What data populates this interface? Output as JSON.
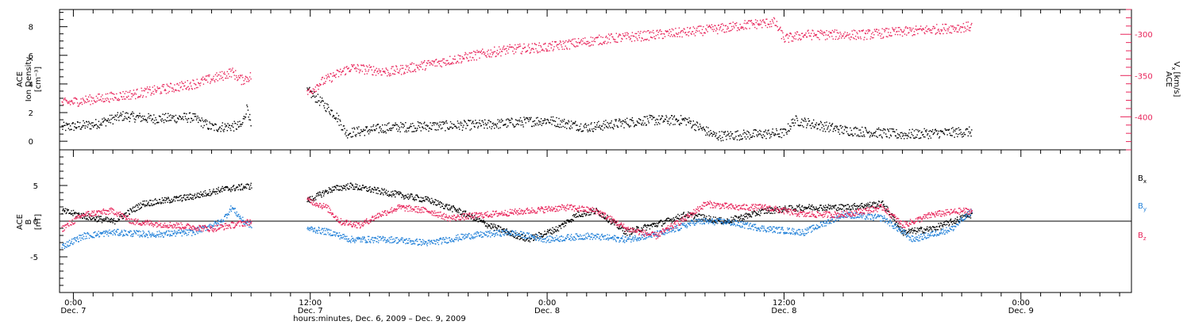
{
  "figure": {
    "footer_label": "hours:minutes, Dec.  6, 2009 – Dec.  9, 2009",
    "x_ticks": [
      {
        "time": "0:00",
        "date": "Dec. 7",
        "hours": 24
      },
      {
        "time": "12:00",
        "date": "Dec. 7",
        "hours": 36
      },
      {
        "time": "0:00",
        "date": "Dec. 8",
        "hours": 48
      },
      {
        "time": "12:00",
        "date": "Dec. 8",
        "hours": 60
      },
      {
        "time": "0:00",
        "date": "Dec. 9",
        "hours": 72
      }
    ],
    "x_range_hours": [
      23.3,
      77.6
    ],
    "colors": {
      "black": "#000000",
      "red": "#e8245a",
      "blue": "#1f7fd8"
    }
  },
  "chart_data": [
    {
      "type": "scatter",
      "panel": "top",
      "x_unit": "hours since Dec. 6, 2009 00:00",
      "left_axis": {
        "label_line1": "ACE",
        "label_line2": "Ion Density",
        "label_line3": "[cm⁻³]",
        "ylim": [
          -0.6,
          9.2
        ],
        "ticks": [
          0,
          2,
          4,
          6,
          8
        ]
      },
      "right_axis": {
        "label_line1": "ACE",
        "label_line2": "V",
        "label_sub": "x",
        "label_line3": "[km/s]",
        "ylim": [
          -440,
          -270
        ],
        "ticks": [
          -300,
          -350,
          -400
        ]
      },
      "series": [
        {
          "axis": "left",
          "color": "#000000",
          "gaps": [
            [
              33.0,
              35.8
            ]
          ],
          "anchors": [
            [
              23.4,
              1.0
            ],
            [
              25.0,
              1.2
            ],
            [
              26.5,
              1.8
            ],
            [
              28.0,
              1.6
            ],
            [
              30.0,
              1.7
            ],
            [
              31.0,
              1.0
            ],
            [
              32.5,
              1.1
            ],
            [
              32.8,
              2.5
            ],
            [
              33.0,
              0.8
            ],
            [
              35.9,
              3.5
            ],
            [
              36.5,
              2.8
            ],
            [
              37.3,
              1.8
            ],
            [
              37.8,
              0.6
            ],
            [
              40.0,
              1.0
            ],
            [
              45.0,
              1.2
            ],
            [
              48.0,
              1.5
            ],
            [
              50.0,
              1.0
            ],
            [
              53.0,
              1.5
            ],
            [
              55.0,
              1.5
            ],
            [
              56.5,
              0.4
            ],
            [
              60.0,
              0.6
            ],
            [
              60.5,
              1.5
            ],
            [
              63.0,
              0.8
            ],
            [
              66.0,
              0.5
            ],
            [
              69.5,
              0.7
            ]
          ]
        },
        {
          "axis": "right",
          "color": "#e8245a",
          "gaps": [
            [
              33.0,
              35.8
            ]
          ],
          "anchors": [
            [
              23.4,
              -383
            ],
            [
              27.0,
              -372
            ],
            [
              30.0,
              -360
            ],
            [
              31.5,
              -350
            ],
            [
              32.0,
              -345
            ],
            [
              32.5,
              -355
            ],
            [
              33.0,
              -350
            ],
            [
              35.9,
              -370
            ],
            [
              36.5,
              -358
            ],
            [
              38.0,
              -340
            ],
            [
              40.0,
              -345
            ],
            [
              45.0,
              -322
            ],
            [
              46.0,
              -318
            ],
            [
              48.0,
              -315
            ],
            [
              51.0,
              -305
            ],
            [
              55.0,
              -297
            ],
            [
              57.0,
              -292
            ],
            [
              58.0,
              -288
            ],
            [
              59.5,
              -285
            ],
            [
              60.0,
              -305
            ],
            [
              61.0,
              -300
            ],
            [
              64.0,
              -300
            ],
            [
              69.5,
              -290
            ]
          ]
        }
      ]
    },
    {
      "type": "scatter",
      "panel": "bottom",
      "x_unit": "hours since Dec. 6, 2009 00:00",
      "left_axis": {
        "label_line1": "ACE",
        "label_line2": "B",
        "label_line3": "[nT]",
        "ylim": [
          -10,
          10
        ],
        "ticks": [
          5,
          0,
          -5
        ]
      },
      "zero_line": true,
      "legend": {
        "placement": "right",
        "items": [
          {
            "text": "B",
            "sub": "x",
            "color": "#000000"
          },
          {
            "text": "B",
            "sub": "y",
            "color": "#1f7fd8"
          },
          {
            "text": "B",
            "sub": "z",
            "color": "#e8245a"
          }
        ]
      },
      "series": [
        {
          "name": "Bx",
          "color": "#000000",
          "gaps": [
            [
              33.0,
              35.8
            ]
          ],
          "anchors": [
            [
              23.4,
              1.5
            ],
            [
              24.5,
              0.8
            ],
            [
              26.0,
              0.0
            ],
            [
              27.5,
              2.5
            ],
            [
              30.0,
              3.5
            ],
            [
              31.5,
              4.5
            ],
            [
              33.0,
              5.0
            ],
            [
              35.9,
              3.0
            ],
            [
              37.0,
              4.5
            ],
            [
              38.0,
              5.0
            ],
            [
              40.0,
              4.0
            ],
            [
              42.0,
              3.0
            ],
            [
              43.5,
              1.5
            ],
            [
              45.0,
              -0.5
            ],
            [
              47.0,
              -2.5
            ],
            [
              48.5,
              -1.0
            ],
            [
              49.5,
              1.0
            ],
            [
              50.5,
              1.5
            ],
            [
              52.0,
              -1.5
            ],
            [
              54.0,
              0.0
            ],
            [
              55.0,
              1.0
            ],
            [
              57.0,
              0.0
            ],
            [
              59.0,
              1.5
            ],
            [
              61.0,
              2.0
            ],
            [
              63.0,
              2.0
            ],
            [
              65.0,
              2.5
            ],
            [
              66.0,
              -1.5
            ],
            [
              67.5,
              -1.0
            ],
            [
              69.5,
              1.0
            ]
          ]
        },
        {
          "name": "By",
          "color": "#1f7fd8",
          "gaps": [
            [
              33.0,
              35.8
            ]
          ],
          "anchors": [
            [
              23.4,
              -3.5
            ],
            [
              24.5,
              -2.0
            ],
            [
              26.0,
              -1.5
            ],
            [
              28.0,
              -1.8
            ],
            [
              30.0,
              -1.5
            ],
            [
              31.5,
              0.0
            ],
            [
              32.0,
              2.0
            ],
            [
              32.6,
              0.0
            ],
            [
              33.0,
              -0.5
            ],
            [
              35.9,
              -1.0
            ],
            [
              37.0,
              -1.5
            ],
            [
              38.0,
              -2.5
            ],
            [
              40.0,
              -2.5
            ],
            [
              42.0,
              -3.0
            ],
            [
              44.0,
              -2.0
            ],
            [
              46.0,
              -1.5
            ],
            [
              48.0,
              -2.5
            ],
            [
              50.0,
              -2.0
            ],
            [
              52.0,
              -2.5
            ],
            [
              54.0,
              -1.5
            ],
            [
              55.5,
              0.0
            ],
            [
              57.0,
              0.0
            ],
            [
              59.0,
              -1.0
            ],
            [
              61.0,
              -1.5
            ],
            [
              63.0,
              1.0
            ],
            [
              65.0,
              0.5
            ],
            [
              66.5,
              -2.5
            ],
            [
              68.5,
              -1.0
            ],
            [
              69.5,
              1.5
            ]
          ]
        },
        {
          "name": "Bz",
          "color": "#e8245a",
          "gaps": [
            [
              33.0,
              35.8
            ]
          ],
          "anchors": [
            [
              23.4,
              -1.0
            ],
            [
              24.5,
              1.0
            ],
            [
              26.0,
              1.5
            ],
            [
              27.0,
              0.0
            ],
            [
              29.0,
              -0.5
            ],
            [
              31.0,
              -1.0
            ],
            [
              33.0,
              0.0
            ],
            [
              35.9,
              3.0
            ],
            [
              36.8,
              2.0
            ],
            [
              37.5,
              0.0
            ],
            [
              38.5,
              -0.5
            ],
            [
              39.5,
              1.0
            ],
            [
              40.5,
              2.0
            ],
            [
              42.0,
              1.5
            ],
            [
              43.0,
              0.5
            ],
            [
              45.0,
              1.0
            ],
            [
              47.0,
              1.5
            ],
            [
              49.0,
              2.0
            ],
            [
              50.5,
              1.5
            ],
            [
              52.0,
              -1.0
            ],
            [
              53.5,
              -2.0
            ],
            [
              55.0,
              0.5
            ],
            [
              56.0,
              2.5
            ],
            [
              57.5,
              2.0
            ],
            [
              59.0,
              2.0
            ],
            [
              61.0,
              1.0
            ],
            [
              63.0,
              1.0
            ],
            [
              65.0,
              2.0
            ],
            [
              66.0,
              -0.5
            ],
            [
              67.5,
              1.0
            ],
            [
              69.0,
              1.5
            ],
            [
              69.5,
              1.5
            ]
          ]
        }
      ]
    }
  ]
}
